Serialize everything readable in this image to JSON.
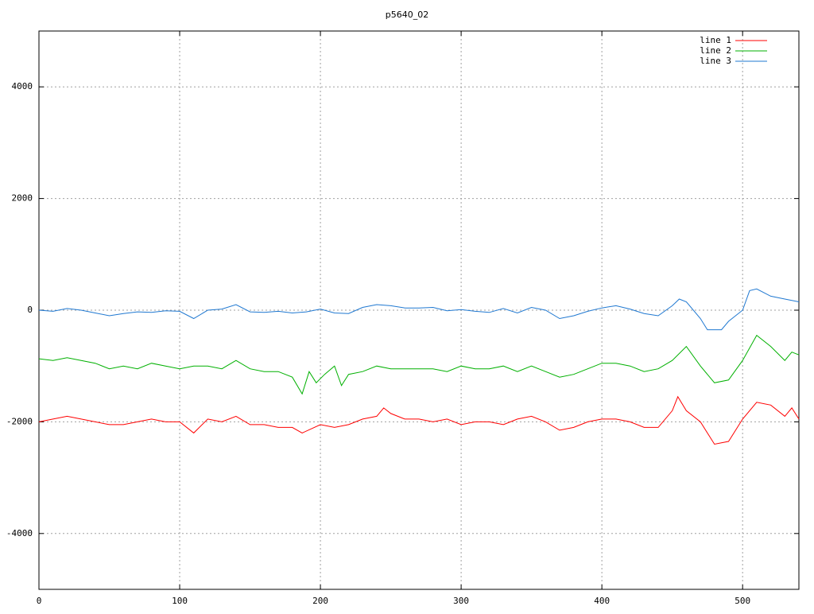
{
  "chart_data": {
    "type": "line",
    "title": "p5640_02",
    "xlim": [
      0,
      540
    ],
    "xticks": [
      0,
      100,
      200,
      300,
      400,
      500
    ],
    "ylim": [
      -5000,
      5000
    ],
    "yticks": [
      -4000,
      -2000,
      0,
      2000,
      4000
    ],
    "grid": true,
    "legend": "top-right",
    "series": [
      {
        "name": "line 1",
        "color": "#ff0000",
        "x": [
          0,
          10,
          20,
          30,
          40,
          50,
          60,
          70,
          80,
          90,
          100,
          110,
          120,
          130,
          140,
          150,
          160,
          170,
          180,
          187,
          200,
          210,
          220,
          230,
          240,
          245,
          250,
          260,
          270,
          280,
          290,
          300,
          310,
          320,
          330,
          340,
          350,
          360,
          370,
          380,
          390,
          400,
          410,
          420,
          430,
          440,
          450,
          454,
          460,
          470,
          480,
          490,
          500,
          510,
          520,
          530,
          535,
          540
        ],
        "values": [
          -2000,
          -1950,
          -1900,
          -1950,
          -2000,
          -2050,
          -2050,
          -2000,
          -1950,
          -2000,
          -2000,
          -2200,
          -1950,
          -2000,
          -1900,
          -2050,
          -2050,
          -2100,
          -2100,
          -2200,
          -2050,
          -2100,
          -2050,
          -1950,
          -1900,
          -1750,
          -1850,
          -1950,
          -1950,
          -2000,
          -1950,
          -2050,
          -2000,
          -2000,
          -2050,
          -1950,
          -1900,
          -2000,
          -2150,
          -2100,
          -2000,
          -1950,
          -1950,
          -2000,
          -2100,
          -2100,
          -1800,
          -1550,
          -1800,
          -2000,
          -2400,
          -2350,
          -1950,
          -1650,
          -1700,
          -1900,
          -1750,
          -1950
        ]
      },
      {
        "name": "line 2",
        "color": "#00b000",
        "x": [
          0,
          10,
          20,
          30,
          40,
          50,
          60,
          70,
          80,
          90,
          100,
          110,
          120,
          130,
          140,
          150,
          160,
          170,
          180,
          187,
          192,
          197,
          203,
          210,
          215,
          220,
          230,
          240,
          250,
          260,
          270,
          280,
          290,
          300,
          310,
          320,
          330,
          340,
          350,
          360,
          370,
          380,
          390,
          400,
          410,
          420,
          430,
          440,
          450,
          460,
          470,
          480,
          490,
          500,
          510,
          520,
          530,
          535,
          540
        ],
        "values": [
          -870,
          -900,
          -850,
          -900,
          -950,
          -1050,
          -1000,
          -1050,
          -950,
          -1000,
          -1050,
          -1000,
          -1000,
          -1050,
          -900,
          -1050,
          -1100,
          -1100,
          -1200,
          -1500,
          -1100,
          -1300,
          -1150,
          -1000,
          -1350,
          -1150,
          -1100,
          -1000,
          -1050,
          -1050,
          -1050,
          -1050,
          -1100,
          -1000,
          -1050,
          -1050,
          -1000,
          -1100,
          -1000,
          -1100,
          -1200,
          -1150,
          -1050,
          -950,
          -950,
          -1000,
          -1100,
          -1050,
          -900,
          -650,
          -1000,
          -1300,
          -1250,
          -900,
          -450,
          -650,
          -900,
          -750,
          -800
        ]
      },
      {
        "name": "line 3",
        "color": "#1f78d1",
        "x": [
          0,
          10,
          20,
          30,
          40,
          50,
          60,
          70,
          80,
          90,
          100,
          110,
          120,
          130,
          140,
          150,
          160,
          170,
          180,
          190,
          200,
          210,
          220,
          230,
          240,
          250,
          260,
          270,
          280,
          290,
          300,
          310,
          320,
          330,
          340,
          350,
          360,
          370,
          380,
          390,
          400,
          410,
          420,
          430,
          440,
          450,
          455,
          460,
          470,
          475,
          485,
          490,
          500,
          505,
          510,
          520,
          530,
          540
        ],
        "values": [
          0,
          -20,
          30,
          0,
          -50,
          -100,
          -60,
          -30,
          -40,
          -10,
          -20,
          -150,
          0,
          20,
          100,
          -30,
          -40,
          -20,
          -50,
          -30,
          20,
          -50,
          -60,
          50,
          100,
          80,
          40,
          40,
          50,
          -10,
          10,
          -20,
          -40,
          30,
          -50,
          50,
          0,
          -150,
          -100,
          -20,
          40,
          80,
          20,
          -60,
          -100,
          80,
          200,
          150,
          -150,
          -350,
          -350,
          -200,
          0,
          350,
          380,
          250,
          200,
          150
        ]
      }
    ]
  }
}
